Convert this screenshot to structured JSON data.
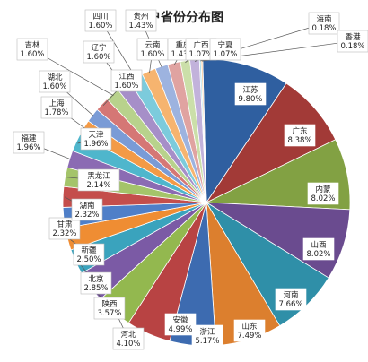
{
  "chart_data": {
    "type": "pie",
    "title": "用户省份分布图",
    "slices": [
      {
        "name": "江苏",
        "pct": "9.80%",
        "value": 9.8,
        "color": "#2f5fa0"
      },
      {
        "name": "广东",
        "pct": "8.38%",
        "value": 8.38,
        "color": "#a23a37"
      },
      {
        "name": "内蒙",
        "pct": "8.02%",
        "value": 8.02,
        "color": "#82a143"
      },
      {
        "name": "山西",
        "pct": "8.02%",
        "value": 8.02,
        "color": "#6a4b8f"
      },
      {
        "name": "河南",
        "pct": "7.66%",
        "value": 7.66,
        "color": "#2f8fa8"
      },
      {
        "name": "山东",
        "pct": "7.49%",
        "value": 7.49,
        "color": "#dc7f2e"
      },
      {
        "name": "浙江",
        "pct": "5.17%",
        "value": 5.17,
        "color": "#3d6bb0"
      },
      {
        "name": "安徽",
        "pct": "4.99%",
        "value": 4.99,
        "color": "#b84343"
      },
      {
        "name": "河北",
        "pct": "4.10%",
        "value": 4.1,
        "color": "#93b84f"
      },
      {
        "name": "陕西",
        "pct": "3.57%",
        "value": 3.57,
        "color": "#7b5aa5"
      },
      {
        "name": "北京",
        "pct": "2.85%",
        "value": 2.85,
        "color": "#3aa3bd"
      },
      {
        "name": "新疆",
        "pct": "2.50%",
        "value": 2.5,
        "color": "#ef8d33"
      },
      {
        "name": "甘肃",
        "pct": "2.32%",
        "value": 2.32,
        "color": "#4f7fc8"
      },
      {
        "name": "湖南",
        "pct": "2.32%",
        "value": 2.32,
        "color": "#c44e4c"
      },
      {
        "name": "黑龙江",
        "pct": "2.14%",
        "value": 2.14,
        "color": "#a4c46a"
      },
      {
        "name": "福建",
        "pct": "1.96%",
        "value": 1.96,
        "color": "#8b6bb3"
      },
      {
        "name": "天津",
        "pct": "1.96%",
        "value": 1.96,
        "color": "#4fb6cc"
      },
      {
        "name": "上海",
        "pct": "1.78%",
        "value": 1.78,
        "color": "#f39a46"
      },
      {
        "name": "湖北",
        "pct": "1.60%",
        "value": 1.6,
        "color": "#7a9bd6"
      },
      {
        "name": "江西",
        "pct": "1.60%",
        "value": 1.6,
        "color": "#d57775"
      },
      {
        "name": "吉林",
        "pct": "1.60%",
        "value": 1.6,
        "color": "#b8d28c"
      },
      {
        "name": "辽宁",
        "pct": "1.60%",
        "value": 1.6,
        "color": "#a68fc8"
      },
      {
        "name": "四川",
        "pct": "1.60%",
        "value": 1.6,
        "color": "#7ccbdc"
      },
      {
        "name": "云南",
        "pct": "1.60%",
        "value": 1.6,
        "color": "#f6b46f"
      },
      {
        "name": "贵州",
        "pct": "1.43%",
        "value": 1.43,
        "color": "#9db3df"
      },
      {
        "name": "重庆",
        "pct": "1.43%",
        "value": 1.43,
        "color": "#e0a3a1"
      },
      {
        "name": "广西",
        "pct": "1.07%",
        "value": 1.07,
        "color": "#cbdfa9"
      },
      {
        "name": "宁夏",
        "pct": "1.07%",
        "value": 1.07,
        "color": "#c2b2db"
      },
      {
        "name": "海南",
        "pct": "0.18%",
        "value": 0.18,
        "color": "#a9dce7"
      },
      {
        "name": "香港",
        "pct": "0.18%",
        "value": 0.18,
        "color": "#f8cd9f"
      }
    ]
  }
}
